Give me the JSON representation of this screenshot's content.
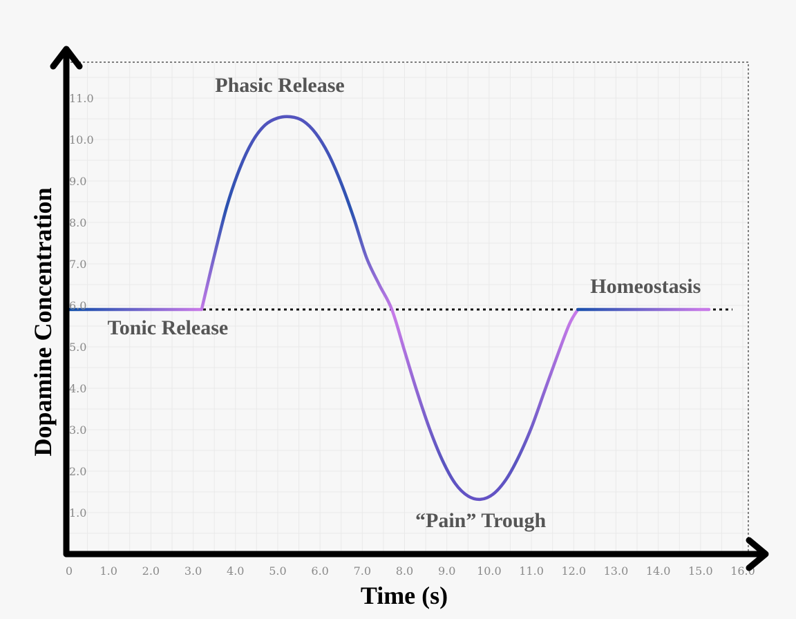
{
  "chart_data": {
    "type": "line",
    "title": "",
    "xlabel": "Time (s)",
    "ylabel": "Dopamine Concentration",
    "xlim": [
      0,
      16
    ],
    "ylim": [
      0,
      12
    ],
    "x_ticks": [
      "0",
      "1.0",
      "2.0",
      "3.0",
      "4.0",
      "5.0",
      "6.0",
      "7.0",
      "8.0",
      "9.0",
      "10.0",
      "11.0",
      "12.0",
      "13.0",
      "14.0",
      "15.0",
      "16.0"
    ],
    "y_ticks": [
      "1.0",
      "2.0",
      "3.0",
      "4.0",
      "5.0",
      "6.0",
      "7.0",
      "8.0",
      "9.0",
      "10.0",
      "11.0"
    ],
    "grid": true,
    "baseline": 5.9,
    "series": [
      {
        "x": [
          0,
          3.2,
          3.5,
          3.8,
          4.1,
          4.4,
          4.7,
          5.0,
          5.3,
          5.6,
          5.9,
          6.2,
          6.5,
          6.8,
          7.1,
          7.4,
          7.7,
          8.0,
          8.3,
          8.6,
          8.9,
          9.2,
          9.5,
          9.8,
          10.1,
          10.4,
          10.7,
          11.0,
          11.3,
          11.6,
          11.9,
          12.1,
          15.2
        ],
        "y": [
          5.9,
          5.9,
          7.2,
          8.4,
          9.3,
          9.95,
          10.35,
          10.52,
          10.55,
          10.45,
          10.15,
          9.65,
          8.95,
          8.1,
          7.15,
          6.5,
          5.9,
          4.9,
          3.9,
          3.0,
          2.25,
          1.7,
          1.4,
          1.32,
          1.45,
          1.8,
          2.35,
          3.05,
          3.9,
          4.75,
          5.55,
          5.9,
          5.9
        ]
      }
    ],
    "annotations": [
      {
        "text": "Phasic Release",
        "x": 5.05,
        "y": 11.15
      },
      {
        "text": "Tonic Release",
        "x": 2.4,
        "y": 5.3
      },
      {
        "text": "Homeostasis",
        "x": 13.7,
        "y": 6.3
      },
      {
        "text": "“Pain” Trough",
        "x": 9.8,
        "y": 0.65
      }
    ],
    "colors": {
      "line_start": "#0b4da8",
      "line_mid": "#5a55c0",
      "line_end": "#c77ae8",
      "axis": "#000000",
      "baseline": "#111111"
    }
  }
}
